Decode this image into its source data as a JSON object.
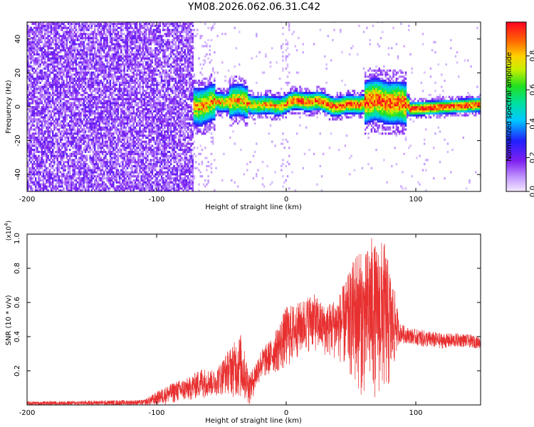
{
  "title": "YM08.2026.062.06.31.C42",
  "colors": {
    "snr_line": "#e83030",
    "axis": "#000000",
    "background": "#ffffff"
  },
  "chart_data": [
    {
      "type": "heatmap",
      "name": "spectrogram",
      "xlabel": "Height of straight line (km)",
      "ylabel": "Frequency (Hz)",
      "xlim": [
        -200,
        150
      ],
      "ylim": [
        -50,
        50
      ],
      "xticks": [
        -200,
        -100,
        0,
        100
      ],
      "xtick_labels": [
        "-200",
        "-100",
        "0",
        "100"
      ],
      "yticks": [
        -40,
        -20,
        0,
        20,
        40
      ],
      "ytick_labels": [
        "-40",
        "-20",
        "0",
        "20",
        "40"
      ],
      "colorbar": {
        "label": "Normalized spectral amplitude",
        "range": [
          0.0,
          1.0
        ],
        "ticks": [
          0.0,
          0.2,
          0.4,
          0.6,
          0.8
        ],
        "tick_labels": [
          "0.0",
          "0.2",
          "0.4",
          "0.6",
          "0.8"
        ],
        "colormap": "rainbow (light purple → violet → blue → cyan → green → yellow → red)"
      },
      "description_regions": [
        {
          "x_range": [
            -200,
            -70
          ],
          "freq_range": [
            -50,
            50
          ],
          "amplitude": [
            0.05,
            0.25
          ]
        },
        {
          "x_range": [
            -70,
            95
          ],
          "freq_center": [
            0,
            3
          ],
          "freq_halfwidth": [
            2,
            10
          ],
          "amplitude": [
            0.3,
            1.0
          ]
        },
        {
          "x_range": [
            95,
            150
          ],
          "freq_center": [
            -3,
            1
          ],
          "freq_halfwidth": [
            2,
            4
          ],
          "amplitude": [
            0.4,
            0.95
          ]
        }
      ]
    },
    {
      "type": "line",
      "name": "snr",
      "xlabel": "Height of straight line (km)",
      "ylabel": "SNR (10 * v/v)",
      "y_multiplier_label": "(x10",
      "y_multiplier_exp": "4",
      "xlim": [
        -200,
        150
      ],
      "ylim": [
        0,
        1.0
      ],
      "xticks": [
        -200,
        -100,
        0,
        100
      ],
      "xtick_labels": [
        "-200",
        "-100",
        "0",
        "100"
      ],
      "yticks": [
        0.2,
        0.4,
        0.6,
        0.8,
        1.0
      ],
      "ytick_labels": [
        "0.2",
        "0.4",
        "0.6",
        "0.8",
        "1.0"
      ],
      "envelope": {
        "x": [
          -200,
          -110,
          -95,
          -85,
          -75,
          -65,
          -55,
          -45,
          -35,
          -28,
          -20,
          -10,
          0,
          10,
          20,
          30,
          40,
          50,
          55,
          60,
          65,
          70,
          75,
          80,
          85,
          87,
          95,
          105,
          120,
          135,
          150
        ],
        "upper": [
          0.02,
          0.03,
          0.1,
          0.14,
          0.16,
          0.22,
          0.2,
          0.32,
          0.42,
          0.18,
          0.32,
          0.4,
          0.58,
          0.6,
          0.66,
          0.58,
          0.64,
          0.8,
          0.94,
          0.85,
          1.0,
          0.92,
          0.98,
          0.8,
          0.62,
          0.48,
          0.45,
          0.44,
          0.42,
          0.42,
          0.4
        ],
        "lower": [
          0.0,
          0.0,
          0.0,
          0.01,
          0.02,
          0.04,
          0.05,
          0.06,
          0.02,
          0.0,
          0.14,
          0.18,
          0.2,
          0.28,
          0.32,
          0.28,
          0.26,
          0.14,
          0.06,
          0.05,
          0.04,
          0.04,
          0.04,
          0.06,
          0.28,
          0.36,
          0.36,
          0.34,
          0.33,
          0.34,
          0.33
        ]
      }
    }
  ]
}
